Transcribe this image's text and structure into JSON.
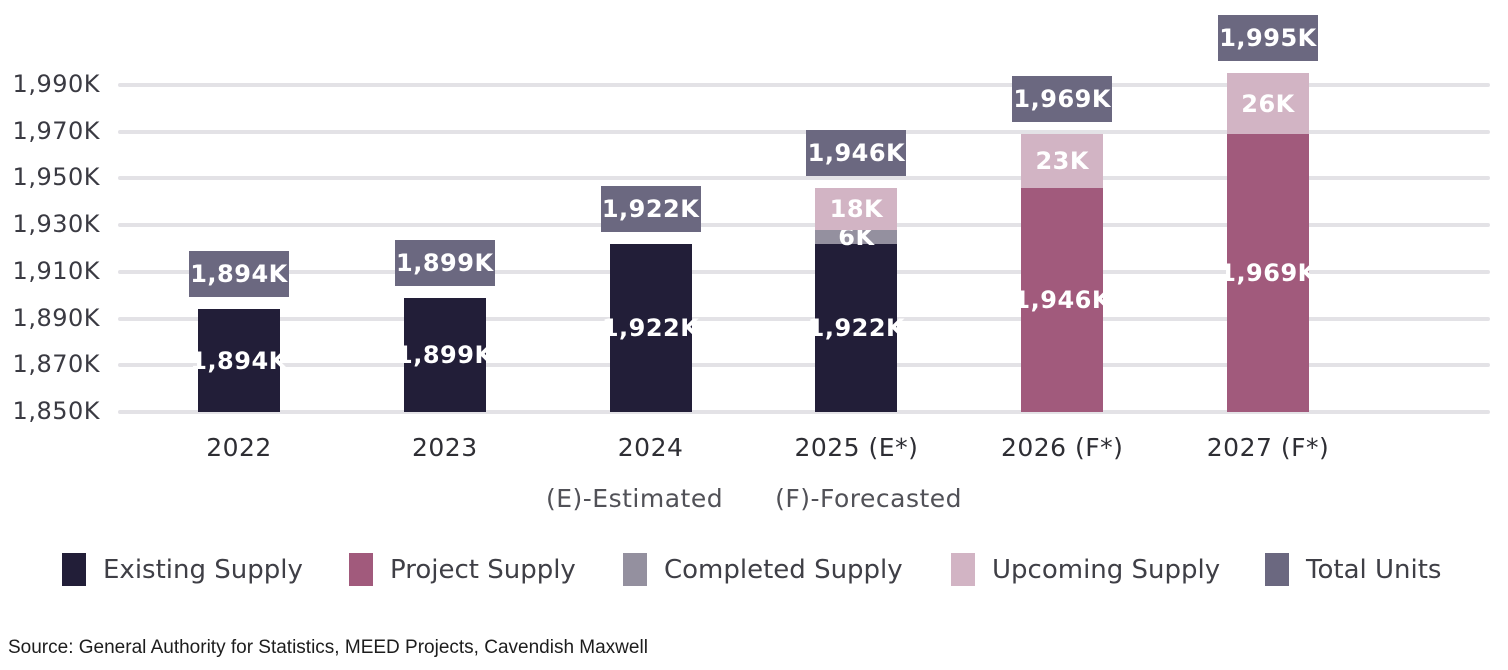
{
  "colors": {
    "existing_supply": "#221e38",
    "project_supply": "#a15a7c",
    "completed_supply": "#94909f",
    "upcoming_supply": "#d2b4c4",
    "total_units": "#6b6880",
    "gridline": "#e3e2e6",
    "axis_text": "#3a3a42",
    "value_text": "#ffffff"
  },
  "chart_data": {
    "type": "bar",
    "stacked": true,
    "title": "",
    "xlabel": "",
    "ylabel": "",
    "grid": true,
    "legend_position": "bottom",
    "baseline": 1850,
    "unit": "K",
    "categories": [
      "2022",
      "2023",
      "2024",
      "2025 (E*)",
      "2026 (F*)",
      "2027 (F*)"
    ],
    "series": [
      {
        "name": "Existing Supply",
        "values": [
          1894,
          1899,
          1922,
          1922,
          null,
          null
        ]
      },
      {
        "name": "Project Supply",
        "values": [
          null,
          null,
          null,
          null,
          1946,
          1969
        ]
      },
      {
        "name": "Completed Supply",
        "values": [
          null,
          null,
          null,
          6,
          null,
          null
        ]
      },
      {
        "name": "Upcoming Supply",
        "values": [
          null,
          null,
          null,
          18,
          23,
          26
        ]
      }
    ],
    "bars": [
      {
        "category": "2022",
        "segments": [
          {
            "series": "Existing Supply",
            "value": 1894,
            "label": "1,894K"
          }
        ],
        "total": {
          "value": 1894,
          "label": "1,894K"
        }
      },
      {
        "category": "2023",
        "segments": [
          {
            "series": "Existing Supply",
            "value": 1899,
            "label": "1,899K"
          }
        ],
        "total": {
          "value": 1899,
          "label": "1,899K"
        }
      },
      {
        "category": "2024",
        "segments": [
          {
            "series": "Existing Supply",
            "value": 1922,
            "label": "1,922K"
          }
        ],
        "total": {
          "value": 1922,
          "label": "1,922K"
        }
      },
      {
        "category": "2025 (E*)",
        "segments": [
          {
            "series": "Existing Supply",
            "value": 1922,
            "label": "1,922K"
          },
          {
            "series": "Completed Supply",
            "value": 6,
            "label": "6K"
          },
          {
            "series": "Upcoming Supply",
            "value": 18,
            "label": "18K"
          }
        ],
        "total": {
          "value": 1946,
          "label": "1,946K"
        }
      },
      {
        "category": "2026 (F*)",
        "segments": [
          {
            "series": "Project Supply",
            "value": 1946,
            "label": "1,946K"
          },
          {
            "series": "Upcoming Supply",
            "value": 23,
            "label": "23K"
          }
        ],
        "total": {
          "value": 1969,
          "label": "1,969K"
        }
      },
      {
        "category": "2027 (F*)",
        "segments": [
          {
            "series": "Project Supply",
            "value": 1969,
            "label": "1,969K"
          },
          {
            "series": "Upcoming Supply",
            "value": 26,
            "label": "26K"
          }
        ],
        "total": {
          "value": 1995,
          "label": "1,995K"
        }
      }
    ],
    "y_axis": {
      "min": 1850,
      "max": 1990,
      "ticks": [
        1990,
        1970,
        1950,
        1930,
        1910,
        1890,
        1870,
        1850
      ],
      "tick_labels": [
        "1,990K",
        "1,970K",
        "1,950K",
        "1,930K",
        "1,910K",
        "1,890K",
        "1,870K",
        "1,850K"
      ]
    },
    "notes": [
      "(E)-Estimated",
      "(F)-Forecasted"
    ],
    "legend": [
      {
        "name": "Existing Supply",
        "color_key": "existing_supply"
      },
      {
        "name": "Project Supply",
        "color_key": "project_supply"
      },
      {
        "name": "Completed Supply",
        "color_key": "completed_supply"
      },
      {
        "name": "Upcoming Supply",
        "color_key": "upcoming_supply"
      },
      {
        "name": "Total Units",
        "color_key": "total_units"
      }
    ]
  },
  "footer": {
    "source": "Source: General Authority for Statistics, MEED Projects, Cavendish Maxwell"
  }
}
